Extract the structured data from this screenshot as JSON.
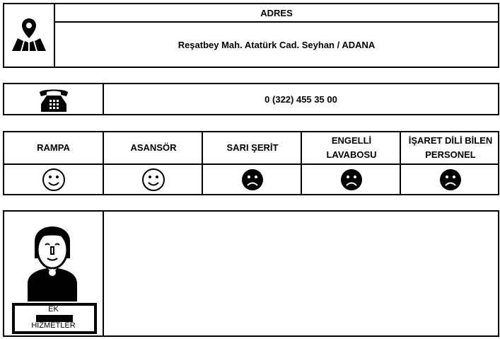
{
  "address": {
    "title": "ADRES",
    "value": "Reşatbey Mah. Atatürk Cad. Seyhan / ADANA",
    "icon": "map-pin-icon"
  },
  "phone": {
    "value": "0 (322) 455 35 00",
    "icon": "telephone-icon"
  },
  "accessibility": [
    {
      "label": "RAMPA",
      "status": "yes"
    },
    {
      "label": "ASANSÖR",
      "status": "yes"
    },
    {
      "label": "SARI ŞERİT",
      "status": "no"
    },
    {
      "label": "ENGELLİ LAVABOSU",
      "status": "no"
    },
    {
      "label": "İŞARET DİLİ BİLEN PERSONEL",
      "status": "no"
    }
  ],
  "extra": {
    "sign_top": "EK",
    "sign_bottom": "HİZMETLER",
    "content": ""
  }
}
